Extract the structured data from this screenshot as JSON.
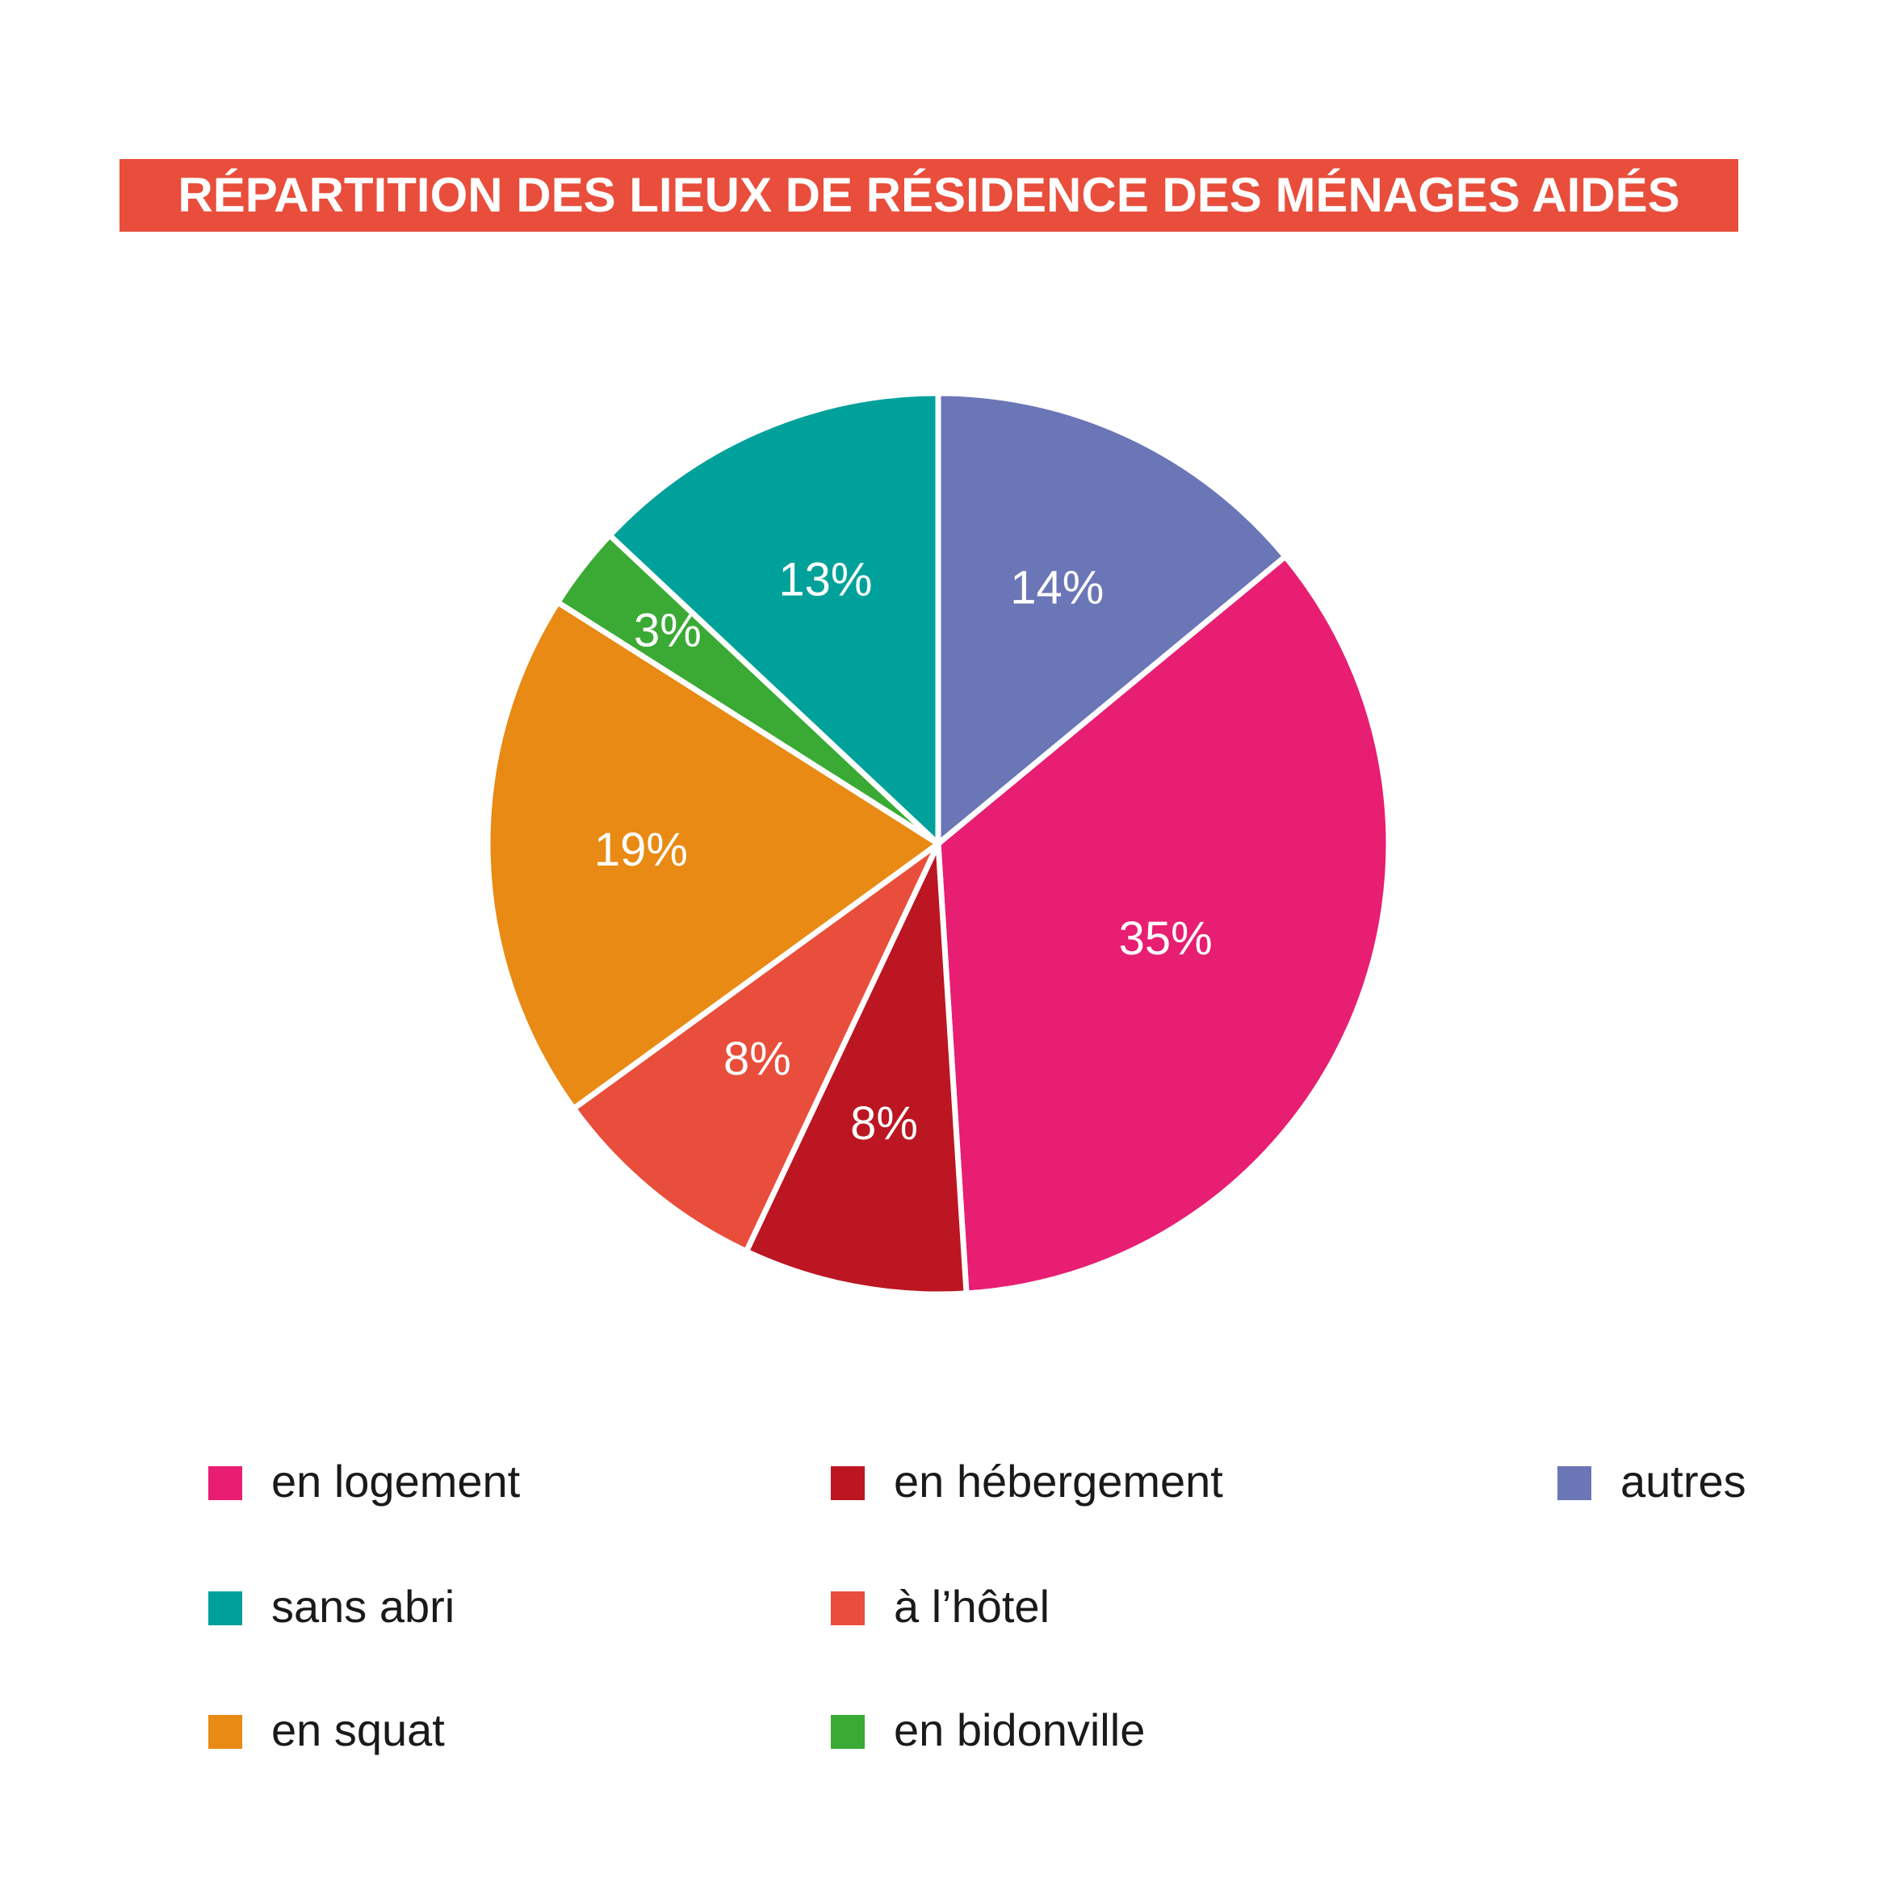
{
  "title": "RÉPARTITION DES LIEUX DE RÉSIDENCE DES MÉNAGES AIDÉS",
  "colors": {
    "title_background": "#e84e3b",
    "title_text": "#ffffff"
  },
  "chart_data": {
    "type": "pie",
    "title": "RÉPARTITION DES LIEUX DE RÉSIDENCE DES MÉNAGES AIDÉS",
    "start": "top (12 o'clock), clockwise",
    "legend_position": "bottom",
    "slices": [
      {
        "label": "autres",
        "value": 14,
        "display": "14%",
        "color": "#6b76b7"
      },
      {
        "label": "en logement",
        "value": 35,
        "display": "35%",
        "color": "#e71e71"
      },
      {
        "label": "en hébergement",
        "value": 8,
        "display": "8%",
        "color": "#bb1622"
      },
      {
        "label": "à l’hôtel",
        "value": 8,
        "display": "8%",
        "color": "#e84e3b"
      },
      {
        "label": "en squat",
        "value": 19,
        "display": "19%",
        "color": "#e88a13"
      },
      {
        "label": "en bidonville",
        "value": 3,
        "display": "3%",
        "color": "#3aaa35"
      },
      {
        "label": "sans abri",
        "value": 13,
        "display": "13%",
        "color": "#00a19a"
      }
    ]
  },
  "legend": [
    {
      "label": "en logement",
      "color": "#e71e71"
    },
    {
      "label": "en hébergement",
      "color": "#bb1622"
    },
    {
      "label": "autres",
      "color": "#6b76b7"
    },
    {
      "label": "sans abri",
      "color": "#00a19a"
    },
    {
      "label": "à l’hôtel",
      "color": "#e84e3b"
    },
    {
      "label": "en squat",
      "color": "#e88a13"
    },
    {
      "label": "en bidonville",
      "color": "#3aaa35"
    }
  ]
}
